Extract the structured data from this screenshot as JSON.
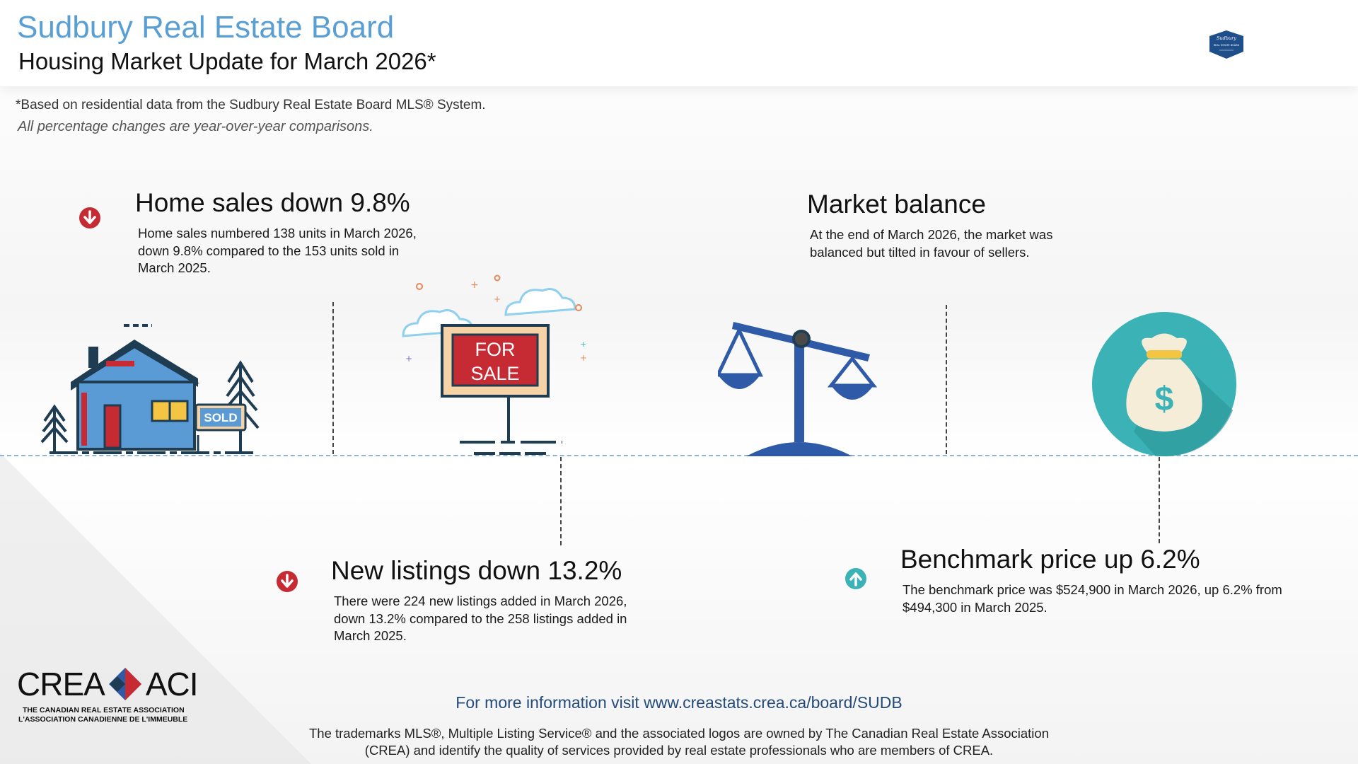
{
  "header": {
    "board_name": "Sudbury Real Estate Board",
    "subtitle": "Housing Market Update for March 2026*"
  },
  "notes": {
    "data_source": "*Based on residential data from the Sudbury Real Estate Board MLS® System.",
    "comparison": "All percentage changes are year-over-year comparisons."
  },
  "sections": {
    "home_sales": {
      "heading": "Home sales down 9.8%",
      "text": "Home sales numbered 138 units in March 2026, down 9.8% compared to the 153 units sold in March 2025.",
      "trend": "down",
      "trend_icon": "down-arrow-icon"
    },
    "market_balance": {
      "heading": "Market balance",
      "text": "At the end of March 2026, the market was balanced but tilted in favour of sellers."
    },
    "new_listings": {
      "heading": "New listings down 13.2%",
      "text": "There were 224 new listings added in March 2026, down 13.2% compared to the 258 listings added in March 2025.",
      "trend": "down",
      "trend_icon": "down-arrow-icon"
    },
    "benchmark_price": {
      "heading": "Benchmark price up 6.2%",
      "text": "The benchmark price was $524,900 in March 2026, up 6.2% from $494,300 in March 2025.",
      "trend": "up",
      "trend_icon": "up-arrow-icon"
    }
  },
  "illustrations": {
    "sold_sign": "SOLD",
    "for_sale_line1": "FOR",
    "for_sale_line2": "SALE",
    "money_symbol": "$"
  },
  "footer": {
    "more_info": "For more information visit www.creastats.crea.ca/board/SUDB",
    "trademark": "The trademarks MLS®, Multiple Listing Service® and the associated logos are owned by The Canadian Real Estate Association (CREA) and identify the quality of services provided by real estate professionals who are members of CREA."
  },
  "logos": {
    "crea_left": "CREA",
    "crea_right": "ACI",
    "crea_en": "THE CANADIAN REAL ESTATE ASSOCIATION",
    "crea_fr": "L'ASSOCIATION CANADIENNE DE L'IMMEUBLE",
    "sudbury_badge_line1": "Sudbury",
    "sudbury_badge_line2": "REAL ESTATE BOARD"
  },
  "colors": {
    "title_blue": "#5a9fd4",
    "down_red": "#c62b34",
    "up_teal": "#3bb3b6",
    "scale_blue": "#2f5aa8",
    "link_navy": "#244b7a"
  }
}
